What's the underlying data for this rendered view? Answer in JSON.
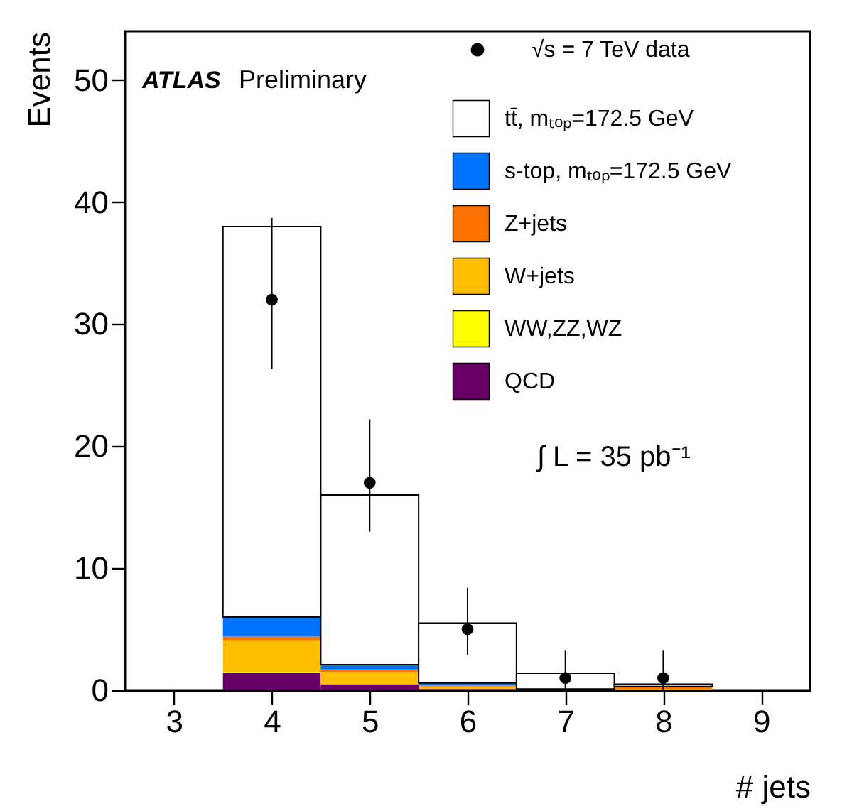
{
  "chart_data": {
    "type": "bar",
    "stacked": true,
    "xlabel": "# jets",
    "ylabel": "Events",
    "x": [
      4,
      5,
      6,
      7,
      8
    ],
    "xlim": [
      2.5,
      9.5
    ],
    "xticks": [
      3,
      4,
      5,
      6,
      7,
      8,
      9
    ],
    "ylim": [
      0,
      54
    ],
    "yticks": [
      0,
      10,
      20,
      30,
      40,
      50
    ],
    "grid": false,
    "legend": "top right",
    "marker": "circle",
    "series": [
      {
        "name": "QCD",
        "color": "#660066",
        "values": [
          1.4,
          0.5,
          0.1,
          0.0,
          0.0
        ]
      },
      {
        "name": "WW,ZZ,WZ",
        "color": "#ffff00",
        "values": [
          0.1,
          0.0,
          0.0,
          0.0,
          0.0
        ]
      },
      {
        "name": "W+jets",
        "color": "#ffbf00",
        "values": [
          2.6,
          1.0,
          0.2,
          0.0,
          0.1
        ]
      },
      {
        "name": "Z+jets",
        "color": "#ff7200",
        "values": [
          0.3,
          0.2,
          0.1,
          0.0,
          0.2
        ]
      },
      {
        "name": "s-top, mₜₒₚ=172.5 GeV",
        "color": "#0073ff",
        "values": [
          1.6,
          0.4,
          0.2,
          0.1,
          0.0
        ]
      },
      {
        "name": "tt̄, mₜₒₚ=172.5 GeV",
        "color": "#ffffff",
        "values": [
          32.0,
          13.9,
          4.9,
          1.3,
          0.2
        ]
      },
      {
        "name": "√s = 7 TeV data",
        "type": "scatter",
        "color": "#000000",
        "x": [
          4,
          5,
          6,
          7,
          8
        ],
        "values": [
          32,
          17,
          5,
          1,
          1
        ],
        "errors": [
          [
            26.3,
            38.7
          ],
          [
            13,
            22.2
          ],
          [
            2.9,
            8.4
          ],
          [
            0,
            3.3
          ],
          [
            0,
            3.3
          ]
        ]
      }
    ],
    "annotations": [
      "ATLAS",
      "Preliminary",
      "∫ L = 35 pb⁻¹"
    ]
  }
}
